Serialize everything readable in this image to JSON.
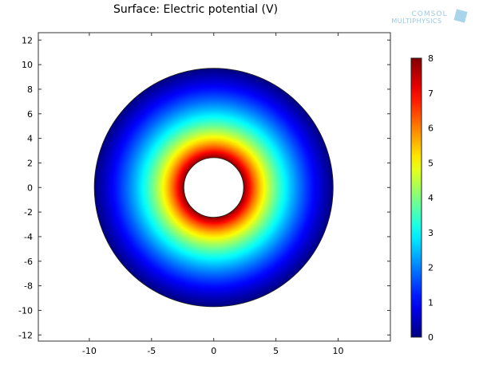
{
  "chart_data": {
    "type": "heatmap",
    "title": "Surface: Electric potential (V)",
    "xlabel": "",
    "ylabel": "",
    "xlim": [
      -14.1,
      14.2
    ],
    "ylim": [
      -12.5,
      12.6
    ],
    "xticks": [
      -10,
      -5,
      0,
      5,
      10
    ],
    "yticks": [
      -12,
      -10,
      -8,
      -6,
      -4,
      -2,
      0,
      2,
      4,
      6,
      8,
      10,
      12
    ],
    "grid": false,
    "geometry": {
      "shape": "annulus",
      "center": [
        0,
        0
      ],
      "inner_radius": 2.4,
      "outer_radius": 9.6
    },
    "field": {
      "inner_value": 8,
      "outer_value": 0,
      "profile": "logarithmic"
    },
    "colorbar": {
      "min": 0,
      "max": 8,
      "ticks": [
        0,
        1,
        2,
        3,
        4,
        5,
        6,
        7,
        8
      ],
      "colormap": "rainbow (dark blue to dark red)",
      "placement": "right"
    }
  },
  "logo": {
    "text_line1": "COMSOL",
    "text_line2": "MULTIPHYSICS",
    "color": "#9ec9e0"
  }
}
